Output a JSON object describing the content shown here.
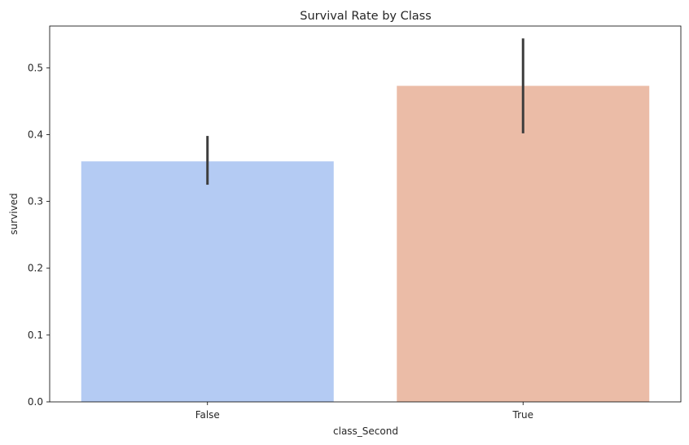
{
  "chart_data": {
    "type": "bar",
    "title": "Survival Rate by Class",
    "xlabel": "class_Second",
    "ylabel": "survived",
    "categories": [
      "False",
      "True"
    ],
    "values": [
      0.36,
      0.473
    ],
    "error_low": [
      0.325,
      0.402
    ],
    "error_high": [
      0.398,
      0.544
    ],
    "colors": [
      "#b4cbf3",
      "#ebbca7"
    ],
    "error_color": "#3d3d3d",
    "ylim": [
      0,
      0.5625
    ],
    "yticks": [
      0.0,
      0.1,
      0.2,
      0.3,
      0.4,
      0.5
    ],
    "ytick_labels": [
      "0.0",
      "0.1",
      "0.2",
      "0.3",
      "0.4",
      "0.5"
    ],
    "grid": false,
    "legend": "none"
  }
}
